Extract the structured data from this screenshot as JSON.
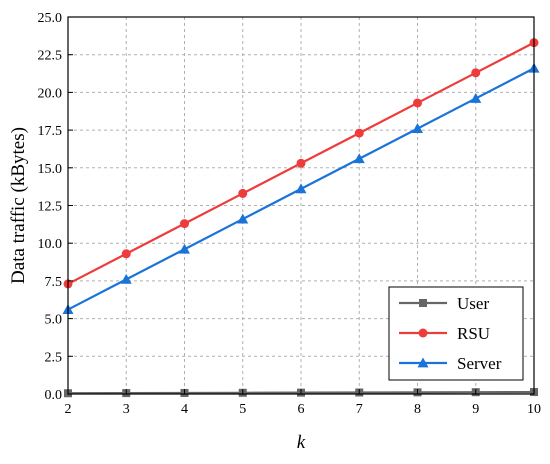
{
  "chart_data": {
    "type": "line",
    "xlabel": "k",
    "ylabel": "Data traffic (kBytes)",
    "x": [
      2,
      3,
      4,
      5,
      6,
      7,
      8,
      9,
      10
    ],
    "xlim": [
      2,
      10
    ],
    "ylim": [
      0,
      25
    ],
    "xticks": [
      "2",
      "3",
      "4",
      "5",
      "6",
      "7",
      "8",
      "9",
      "10"
    ],
    "yticks": [
      "0.0",
      "2.5",
      "5.0",
      "7.5",
      "10.0",
      "12.5",
      "15.0",
      "17.5",
      "20.0",
      "22.5",
      "25.0"
    ],
    "grid": true,
    "legend_position": "bottom-right",
    "series": [
      {
        "name": "User",
        "marker": "square",
        "color": "#666666",
        "values": [
          0.05,
          0.06,
          0.07,
          0.08,
          0.09,
          0.1,
          0.11,
          0.12,
          0.13
        ]
      },
      {
        "name": "RSU",
        "marker": "circle",
        "color": "#ee3b3b",
        "values": [
          7.3,
          9.3,
          11.3,
          13.3,
          15.3,
          17.3,
          19.3,
          21.3,
          23.3
        ]
      },
      {
        "name": "Server",
        "marker": "triangle",
        "color": "#1a73d9",
        "values": [
          5.6,
          7.6,
          9.6,
          11.6,
          13.6,
          15.6,
          17.6,
          19.6,
          21.6
        ]
      }
    ]
  }
}
